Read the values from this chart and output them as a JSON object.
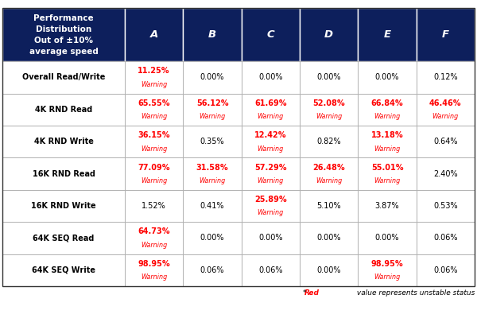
{
  "header_bg": "#0d1f5c",
  "header_text_color": "#ffffff",
  "warning_color": "#ff0000",
  "normal_color": "#000000",
  "border_color": "#aaaaaa",
  "col_headers": [
    "A",
    "B",
    "C",
    "D",
    "E",
    "F"
  ],
  "row_labels": [
    "Overall Read/Write",
    "4K RND Read",
    "4K RND Write",
    "16K RND Read",
    "16K RND Write",
    "64K SEQ Read",
    "64K SEQ Write"
  ],
  "cells": [
    [
      {
        "value": "11.25%",
        "warning": true
      },
      {
        "value": "0.00%",
        "warning": false
      },
      {
        "value": "0.00%",
        "warning": false
      },
      {
        "value": "0.00%",
        "warning": false
      },
      {
        "value": "0.00%",
        "warning": false
      },
      {
        "value": "0.12%",
        "warning": false
      }
    ],
    [
      {
        "value": "65.55%",
        "warning": true
      },
      {
        "value": "56.12%",
        "warning": true
      },
      {
        "value": "61.69%",
        "warning": true
      },
      {
        "value": "52.08%",
        "warning": true
      },
      {
        "value": "66.84%",
        "warning": true
      },
      {
        "value": "46.46%",
        "warning": true
      }
    ],
    [
      {
        "value": "36.15%",
        "warning": true
      },
      {
        "value": "0.35%",
        "warning": false
      },
      {
        "value": "12.42%",
        "warning": true
      },
      {
        "value": "0.82%",
        "warning": false
      },
      {
        "value": "13.18%",
        "warning": true
      },
      {
        "value": "0.64%",
        "warning": false
      }
    ],
    [
      {
        "value": "77.09%",
        "warning": true
      },
      {
        "value": "31.58%",
        "warning": true
      },
      {
        "value": "57.29%",
        "warning": true
      },
      {
        "value": "26.48%",
        "warning": true
      },
      {
        "value": "55.01%",
        "warning": true
      },
      {
        "value": "2.40%",
        "warning": false
      }
    ],
    [
      {
        "value": "1.52%",
        "warning": false
      },
      {
        "value": "0.41%",
        "warning": false
      },
      {
        "value": "25.89%",
        "warning": true
      },
      {
        "value": "5.10%",
        "warning": false
      },
      {
        "value": "3.87%",
        "warning": false
      },
      {
        "value": "0.53%",
        "warning": false
      }
    ],
    [
      {
        "value": "64.73%",
        "warning": true
      },
      {
        "value": "0.00%",
        "warning": false
      },
      {
        "value": "0.00%",
        "warning": false
      },
      {
        "value": "0.00%",
        "warning": false
      },
      {
        "value": "0.00%",
        "warning": false
      },
      {
        "value": "0.06%",
        "warning": false
      }
    ],
    [
      {
        "value": "98.95%",
        "warning": true
      },
      {
        "value": "0.06%",
        "warning": false
      },
      {
        "value": "0.06%",
        "warning": false
      },
      {
        "value": "0.00%",
        "warning": false
      },
      {
        "value": "98.95%",
        "warning": true
      },
      {
        "value": "0.06%",
        "warning": false
      }
    ]
  ],
  "col_widths_ratio": [
    2.1,
    1.0,
    1.0,
    1.0,
    1.0,
    1.0,
    1.0
  ],
  "header_fontsize": 7.5,
  "col_header_fontsize": 9.5,
  "row_label_fontsize": 7.0,
  "value_fontsize": 7.0,
  "warning_fontsize": 5.8,
  "footnote_fontsize": 6.5
}
